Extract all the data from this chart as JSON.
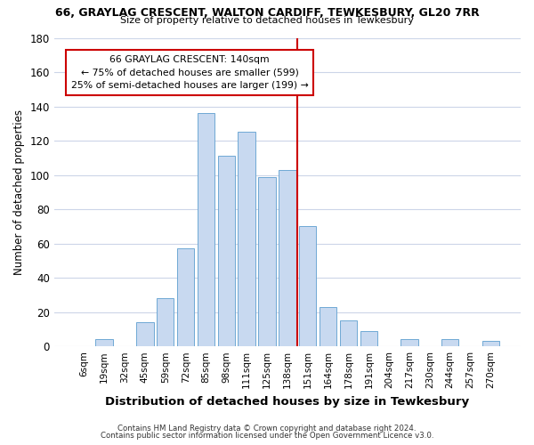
{
  "title": "66, GRAYLAG CRESCENT, WALTON CARDIFF, TEWKESBURY, GL20 7RR",
  "subtitle": "Size of property relative to detached houses in Tewkesbury",
  "xlabel": "Distribution of detached houses by size in Tewkesbury",
  "ylabel": "Number of detached properties",
  "bar_color": "#c8d9f0",
  "bar_edge_color": "#6fa8d4",
  "categories": [
    "6sqm",
    "19sqm",
    "32sqm",
    "45sqm",
    "59sqm",
    "72sqm",
    "85sqm",
    "98sqm",
    "111sqm",
    "125sqm",
    "138sqm",
    "151sqm",
    "164sqm",
    "178sqm",
    "191sqm",
    "204sqm",
    "217sqm",
    "230sqm",
    "244sqm",
    "257sqm",
    "270sqm"
  ],
  "values": [
    0,
    4,
    0,
    14,
    28,
    57,
    136,
    111,
    125,
    99,
    103,
    70,
    23,
    15,
    9,
    0,
    4,
    0,
    4,
    0,
    3
  ],
  "ylim": [
    0,
    180
  ],
  "yticks": [
    0,
    20,
    40,
    60,
    80,
    100,
    120,
    140,
    160,
    180
  ],
  "vline_x": 10.5,
  "vline_color": "#cc0000",
  "annotation_title": "66 GRAYLAG CRESCENT: 140sqm",
  "annotation_line1": "← 75% of detached houses are smaller (599)",
  "annotation_line2": "25% of semi-detached houses are larger (199) →",
  "annotation_box_color": "#ffffff",
  "annotation_box_edge": "#cc0000",
  "footer1": "Contains HM Land Registry data © Crown copyright and database right 2024.",
  "footer2": "Contains public sector information licensed under the Open Government Licence v3.0.",
  "background_color": "#ffffff",
  "grid_color": "#ccd5e8"
}
